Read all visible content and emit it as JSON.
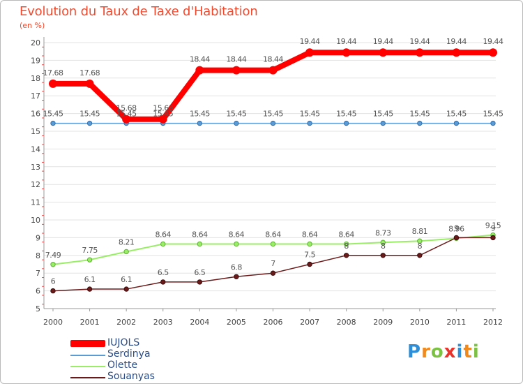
{
  "chart_data": {
    "type": "line",
    "title": "Evolution du Taux de Taxe d'Habitation",
    "subtitle": "(en %)",
    "xlabel": "",
    "ylabel": "",
    "categories": [
      "2000",
      "2001",
      "2002",
      "2003",
      "2004",
      "2005",
      "2006",
      "2007",
      "2008",
      "2009",
      "2010",
      "2011",
      "2012"
    ],
    "ylim": [
      5,
      20
    ],
    "yticks": [
      "5",
      "6",
      "7",
      "8",
      "9",
      "10",
      "11",
      "12",
      "13",
      "14",
      "15",
      "16",
      "17",
      "18",
      "19",
      "20"
    ],
    "series": [
      {
        "name": "IUJOLS",
        "color": "#ff0000",
        "values": [
          17.68,
          17.68,
          15.68,
          15.68,
          18.44,
          18.44,
          18.44,
          19.44,
          19.44,
          19.44,
          19.44,
          19.44,
          19.44
        ],
        "labels": [
          "17.68",
          "17.68",
          "15.68",
          "15.68",
          "18.44",
          "18.44",
          "18.44",
          "19.44",
          "19.44",
          "19.44",
          "19.44",
          "19.44",
          "19.44"
        ]
      },
      {
        "name": "Serdinya",
        "color": "#5b9bd5",
        "values": [
          15.45,
          15.45,
          15.45,
          15.45,
          15.45,
          15.45,
          15.45,
          15.45,
          15.45,
          15.45,
          15.45,
          15.45,
          15.45
        ],
        "labels": [
          "15.45",
          "15.45",
          "15.45",
          "15.45",
          "15.45",
          "15.45",
          "15.45",
          "15.45",
          "15.45",
          "15.45",
          "15.45",
          "15.45",
          "15.45"
        ]
      },
      {
        "name": "Olette",
        "color": "#99ee66",
        "values": [
          7.49,
          7.75,
          8.21,
          8.64,
          8.64,
          8.64,
          8.64,
          8.64,
          8.64,
          8.73,
          8.81,
          8.96,
          9.15
        ],
        "labels": [
          "7.49",
          "7.75",
          "8.21",
          "8.64",
          "8.64",
          "8.64",
          "8.64",
          "8.64",
          "8.64",
          "8.73",
          "8.81",
          "8.96",
          "9.15"
        ]
      },
      {
        "name": "Souanyas",
        "color": "#6b1a1a",
        "values": [
          6,
          6.1,
          6.1,
          6.5,
          6.5,
          6.8,
          7,
          7.5,
          8,
          8,
          8,
          9,
          9
        ],
        "labels": [
          "6",
          "6.1",
          "6.1",
          "6.5",
          "6.5",
          "6.8",
          "7",
          "7.5",
          "8",
          "8",
          "8",
          "9",
          "9"
        ]
      }
    ]
  },
  "logo": {
    "text": "Proxiti",
    "letters": [
      "P",
      "r",
      "o",
      "x",
      "i",
      "t",
      "i"
    ],
    "colors": [
      "#2e8fd8",
      "#f08a1c",
      "#7cc242",
      "#e8322a",
      "#2e8fd8",
      "#f08a1c",
      "#7cc242"
    ]
  }
}
